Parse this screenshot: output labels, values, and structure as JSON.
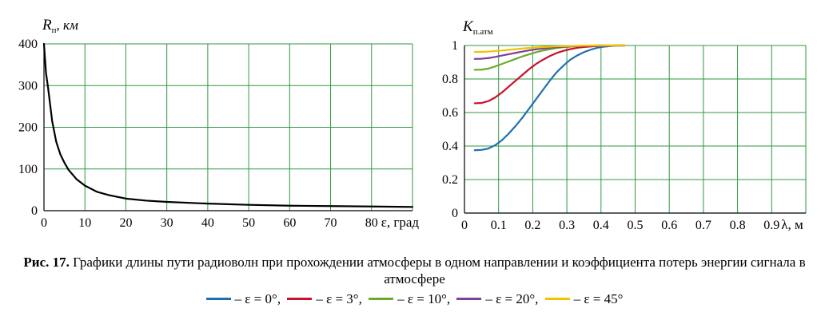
{
  "chart_data": [
    {
      "type": "line",
      "ylabel_main": "R",
      "ylabel_sub": "п",
      "ylabel_unit": ", км",
      "xlabel": "ε, град",
      "xlim": [
        0,
        90
      ],
      "ylim": [
        0,
        400
      ],
      "xticks": [
        0,
        10,
        20,
        30,
        40,
        50,
        60,
        70,
        80
      ],
      "yticks": [
        0,
        100,
        200,
        300,
        400
      ],
      "grid": true,
      "series": [
        {
          "color": "#000000",
          "x": [
            0,
            0.5,
            1,
            2,
            3,
            4,
            5,
            6,
            8,
            10,
            13,
            16,
            20,
            25,
            30,
            40,
            50,
            60,
            70,
            80,
            90
          ],
          "y": [
            400,
            330,
            295,
            215,
            165,
            135,
            115,
            98,
            75,
            60,
            45,
            37,
            29,
            24,
            21,
            17,
            14,
            12,
            11,
            10,
            9
          ]
        }
      ]
    },
    {
      "type": "line",
      "ylabel_main": "K",
      "ylabel_sub": "п.атм",
      "xlabel": "λ, м",
      "xlim": [
        0,
        1.0
      ],
      "ylim": [
        0,
        1
      ],
      "xticks": [
        "0",
        "0.1",
        "0.2",
        "0.3",
        "0.4",
        "0.5",
        "0.6",
        "0.7",
        "0.8",
        "0.9"
      ],
      "yticks": [
        "0",
        "0.2",
        "0.4",
        "0.6",
        "0.8",
        "1"
      ],
      "grid": true,
      "series": [
        {
          "legend": "– ε = 0°,",
          "color": "#1f6fb0",
          "x": [
            0.03,
            0.05,
            0.07,
            0.09,
            0.11,
            0.13,
            0.15,
            0.17,
            0.19,
            0.21,
            0.23,
            0.25,
            0.27,
            0.29,
            0.31,
            0.33,
            0.35,
            0.37,
            0.39,
            0.41,
            0.43,
            0.45,
            0.47
          ],
          "y": [
            0.375,
            0.377,
            0.385,
            0.405,
            0.435,
            0.475,
            0.52,
            0.57,
            0.625,
            0.68,
            0.735,
            0.79,
            0.84,
            0.88,
            0.915,
            0.94,
            0.96,
            0.975,
            0.987,
            0.993,
            0.997,
            0.999,
            1.0
          ]
        },
        {
          "legend": "– ε = 3°,",
          "color": "#c8102e",
          "x": [
            0.03,
            0.05,
            0.07,
            0.09,
            0.11,
            0.13,
            0.15,
            0.17,
            0.19,
            0.21,
            0.23,
            0.25,
            0.27,
            0.29,
            0.31,
            0.33,
            0.35,
            0.37,
            0.39,
            0.41,
            0.43,
            0.45,
            0.47
          ],
          "y": [
            0.655,
            0.657,
            0.668,
            0.69,
            0.72,
            0.755,
            0.79,
            0.825,
            0.86,
            0.89,
            0.915,
            0.937,
            0.955,
            0.968,
            0.978,
            0.986,
            0.991,
            0.994,
            0.997,
            0.998,
            0.999,
            1.0,
            1.0
          ]
        },
        {
          "legend": "– ε = 10°,",
          "color": "#6aaa2a",
          "x": [
            0.03,
            0.05,
            0.07,
            0.09,
            0.11,
            0.13,
            0.15,
            0.17,
            0.19,
            0.21,
            0.23,
            0.25,
            0.27,
            0.29,
            0.31,
            0.33,
            0.35,
            0.37,
            0.39,
            0.41,
            0.43,
            0.45,
            0.47
          ],
          "y": [
            0.855,
            0.856,
            0.862,
            0.875,
            0.89,
            0.905,
            0.92,
            0.935,
            0.948,
            0.96,
            0.97,
            0.978,
            0.985,
            0.99,
            0.993,
            0.996,
            0.998,
            0.999,
            1.0,
            1.0,
            1.0,
            1.0,
            1.0
          ]
        },
        {
          "legend": "– ε = 20°,",
          "color": "#7b3f9e",
          "x": [
            0.03,
            0.05,
            0.07,
            0.09,
            0.11,
            0.13,
            0.15,
            0.17,
            0.19,
            0.21,
            0.23,
            0.25,
            0.27,
            0.29,
            0.31,
            0.33,
            0.35,
            0.37,
            0.39,
            0.41,
            0.43,
            0.45,
            0.47
          ],
          "y": [
            0.92,
            0.921,
            0.925,
            0.932,
            0.94,
            0.948,
            0.956,
            0.964,
            0.971,
            0.977,
            0.982,
            0.987,
            0.99,
            0.993,
            0.995,
            0.997,
            0.998,
            0.999,
            1.0,
            1.0,
            1.0,
            1.0,
            1.0
          ]
        },
        {
          "legend": "– ε = 45°",
          "color": "#f2c200",
          "x": [
            0.03,
            0.05,
            0.07,
            0.09,
            0.11,
            0.13,
            0.15,
            0.17,
            0.19,
            0.21,
            0.23,
            0.25,
            0.27,
            0.29,
            0.31,
            0.33,
            0.35,
            0.37,
            0.39,
            0.41,
            0.43,
            0.45,
            0.47
          ],
          "y": [
            0.962,
            0.962,
            0.964,
            0.967,
            0.97,
            0.974,
            0.978,
            0.982,
            0.985,
            0.988,
            0.991,
            0.993,
            0.995,
            0.996,
            0.997,
            0.998,
            0.999,
            1.0,
            1.0,
            1.0,
            1.0,
            1.0,
            1.0
          ]
        }
      ]
    }
  ],
  "caption": {
    "bold": "Рис. 17.",
    "text": " Графики длины пути радиоволн при прохождении атмосферы в одном направлении и коэффициента потерь энергии сигнала в атмосфере"
  },
  "colors": {
    "grid": "#2e9a3e",
    "axis": "#000000"
  }
}
